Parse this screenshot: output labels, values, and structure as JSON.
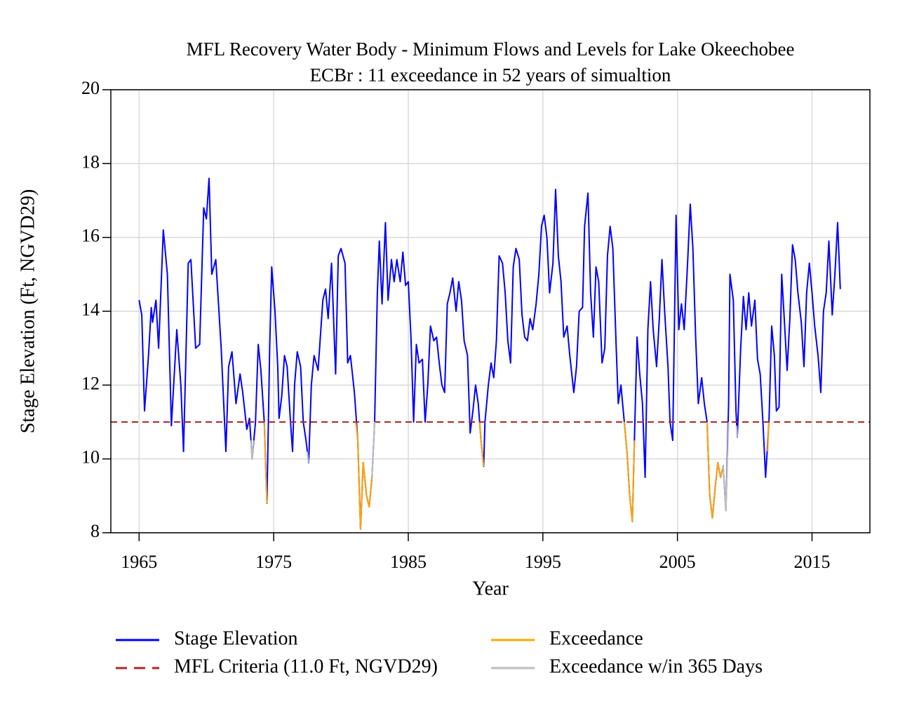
{
  "chart_data": {
    "type": "line",
    "title": "MFL Recovery Water Body - Minimum Flows and Levels for Lake Okeechobee",
    "subtitle": "ECBr : 11 exceedance in 52 years of simualtion",
    "x_label": "Year",
    "y_label": "Stage Elevation (Ft, NGVD29)",
    "xlim": [
      1962.9,
      2019.3
    ],
    "xticks": [
      1965,
      1975,
      1985,
      1995,
      2005,
      2015
    ],
    "ylim": [
      8,
      20
    ],
    "yticks": [
      8,
      10,
      12,
      14,
      16,
      18,
      20
    ],
    "grid": true,
    "legend": "bottom",
    "series": [
      {
        "name": "Stage Elevation",
        "color": "#0000ff",
        "x": [
          1965.0,
          1965.2,
          1965.4,
          1965.7,
          1965.9,
          1966.0,
          1966.25,
          1966.45,
          1966.8,
          1967.1,
          1967.4,
          1967.8,
          1968.1,
          1968.3,
          1968.65,
          1968.85,
          1969.2,
          1969.5,
          1969.8,
          1970.0,
          1970.2,
          1970.4,
          1970.7,
          1971.1,
          1971.45,
          1971.65,
          1971.9,
          1972.2,
          1972.5,
          1972.7,
          1973.0,
          1973.2,
          1973.4,
          1973.65,
          1973.85,
          1974.05,
          1974.3,
          1974.5,
          1974.7,
          1974.85,
          1975.1,
          1975.3,
          1975.4,
          1975.6,
          1975.8,
          1976.0,
          1976.25,
          1976.4,
          1976.55,
          1976.75,
          1977.0,
          1977.2,
          1977.4,
          1977.6,
          1977.8,
          1978.0,
          1978.3,
          1978.65,
          1978.85,
          1979.05,
          1979.3,
          1979.6,
          1979.8,
          1980.0,
          1980.3,
          1980.5,
          1980.7,
          1981.0,
          1981.25,
          1981.45,
          1981.65,
          1981.9,
          1982.1,
          1982.3,
          1982.5,
          1982.7,
          1982.85,
          1983.05,
          1983.3,
          1983.5,
          1983.75,
          1983.95,
          1984.15,
          1984.4,
          1984.6,
          1984.8,
          1985.0,
          1985.2,
          1985.4,
          1985.6,
          1985.8,
          1986.05,
          1986.25,
          1986.45,
          1986.65,
          1986.9,
          1987.1,
          1987.3,
          1987.5,
          1987.7,
          1987.9,
          1988.1,
          1988.3,
          1988.55,
          1988.75,
          1988.95,
          1989.15,
          1989.4,
          1989.6,
          1989.8,
          1990.0,
          1990.2,
          1990.4,
          1990.6,
          1990.7,
          1990.95,
          1991.15,
          1991.35,
          1991.55,
          1991.75,
          1992.0,
          1992.2,
          1992.4,
          1992.6,
          1992.8,
          1993.0,
          1993.25,
          1993.45,
          1993.65,
          1993.85,
          1994.05,
          1994.25,
          1994.5,
          1994.7,
          1994.9,
          1995.1,
          1995.3,
          1995.5,
          1995.75,
          1995.95,
          1996.15,
          1996.35,
          1996.55,
          1996.8,
          1997.0,
          1997.3,
          1997.5,
          1997.7,
          1997.95,
          1998.1,
          1998.35,
          1998.55,
          1998.75,
          1998.95,
          1999.15,
          1999.4,
          1999.6,
          1999.8,
          2000.0,
          2000.2,
          2000.45,
          2000.6,
          2000.8,
          2001.05,
          2001.25,
          2001.45,
          2001.65,
          2001.8,
          2002.0,
          2002.2,
          2002.4,
          2002.6,
          2002.8,
          2003.0,
          2003.2,
          2003.45,
          2003.65,
          2003.85,
          2004.05,
          2004.3,
          2004.45,
          2004.65,
          2004.9,
          2005.1,
          2005.3,
          2005.5,
          2005.75,
          2005.95,
          2006.15,
          2006.35,
          2006.55,
          2006.8,
          2007.0,
          2007.2,
          2007.4,
          2007.6,
          2007.8,
          2008.0,
          2008.2,
          2008.4,
          2008.6,
          2008.8,
          2008.9,
          2009.15,
          2009.35,
          2009.45,
          2009.7,
          2009.9,
          2010.1,
          2010.3,
          2010.5,
          2010.75,
          2010.95,
          2011.15,
          2011.35,
          2011.55,
          2011.8,
          2012.0,
          2012.2,
          2012.35,
          2012.55,
          2012.75,
          2012.95,
          2013.15,
          2013.35,
          2013.55,
          2013.75,
          2013.95,
          2014.2,
          2014.4,
          2014.6,
          2014.8,
          2015.0,
          2015.2,
          2015.45,
          2015.65,
          2015.85,
          2016.05,
          2016.25,
          2016.5,
          2016.7,
          2016.9,
          2017.1
        ],
        "values": [
          14.3,
          13.9,
          11.3,
          12.8,
          14.1,
          13.7,
          14.3,
          13.0,
          16.2,
          15.0,
          10.9,
          13.5,
          12.0,
          10.2,
          15.3,
          15.4,
          13.0,
          13.1,
          16.8,
          16.5,
          17.6,
          15.0,
          15.4,
          13.0,
          10.2,
          12.5,
          12.9,
          11.5,
          12.3,
          11.8,
          10.8,
          11.1,
          10.0,
          11.0,
          13.1,
          12.4,
          11.0,
          8.8,
          13.0,
          15.2,
          14.0,
          12.5,
          11.1,
          11.7,
          12.8,
          12.5,
          11.0,
          10.2,
          12.0,
          12.9,
          12.5,
          11.0,
          10.5,
          9.9,
          12.0,
          12.8,
          12.4,
          14.3,
          14.6,
          13.8,
          15.3,
          12.3,
          15.5,
          15.7,
          15.3,
          12.6,
          12.8,
          11.8,
          10.5,
          8.1,
          9.9,
          9.0,
          8.7,
          9.5,
          11.0,
          14.5,
          15.9,
          14.2,
          16.4,
          14.3,
          15.4,
          14.8,
          15.4,
          14.8,
          15.6,
          14.7,
          14.8,
          13.3,
          11.0,
          13.1,
          12.6,
          12.7,
          11.0,
          12.0,
          13.6,
          13.2,
          13.3,
          12.6,
          12.0,
          11.8,
          14.2,
          14.5,
          14.9,
          14.0,
          14.8,
          14.3,
          13.2,
          12.8,
          10.7,
          11.3,
          12.0,
          11.5,
          10.5,
          9.8,
          11.0,
          12.0,
          12.6,
          12.2,
          13.2,
          15.5,
          15.3,
          14.5,
          13.2,
          12.6,
          15.2,
          15.7,
          15.4,
          13.9,
          13.3,
          13.2,
          13.8,
          13.5,
          14.2,
          15.0,
          16.3,
          16.6,
          16.0,
          14.5,
          15.3,
          17.3,
          15.5,
          14.8,
          13.3,
          13.6,
          12.8,
          11.8,
          12.5,
          14.0,
          14.1,
          16.3,
          17.2,
          14.5,
          13.3,
          15.2,
          14.8,
          12.6,
          13.0,
          15.5,
          16.3,
          15.7,
          13.0,
          11.5,
          12.0,
          11.0,
          10.2,
          9.0,
          8.3,
          10.5,
          13.3,
          12.3,
          11.5,
          9.5,
          13.5,
          14.8,
          13.5,
          12.5,
          13.8,
          15.4,
          14.0,
          12.5,
          11.0,
          10.5,
          16.6,
          13.5,
          14.2,
          13.5,
          15.3,
          16.9,
          15.7,
          13.3,
          11.5,
          12.2,
          11.5,
          11.0,
          9.0,
          8.4,
          9.2,
          9.9,
          9.5,
          9.8,
          8.6,
          11.5,
          15.0,
          14.3,
          11.3,
          10.6,
          13.0,
          14.4,
          13.5,
          14.5,
          13.6,
          14.3,
          12.7,
          12.3,
          11.0,
          9.5,
          11.0,
          13.6,
          12.8,
          11.3,
          11.4,
          15.0,
          13.7,
          12.4,
          13.8,
          15.8,
          15.4,
          14.5,
          13.7,
          12.5,
          14.5,
          15.3,
          14.5,
          13.6,
          12.8,
          11.8,
          14.0,
          14.5,
          15.9,
          13.9,
          15.0,
          16.4,
          14.6
        ]
      },
      {
        "name": "Exceedance",
        "color": "#ffa500",
        "x": [
          1974.3,
          1974.5,
          null,
          1981.1,
          1981.25,
          1981.45,
          1981.65,
          1981.9,
          1982.1,
          1982.3,
          null,
          1990.3,
          1990.4,
          1990.6,
          null,
          2001.05,
          2001.25,
          2001.45,
          2001.65,
          2001.8,
          null,
          2007.2,
          2007.4,
          2007.6,
          2007.8,
          2008.0,
          2008.2,
          2008.4,
          null,
          2011.7,
          2011.8
        ],
        "values": [
          11.0,
          8.8,
          null,
          11.0,
          10.5,
          8.1,
          9.9,
          9.0,
          8.7,
          9.5,
          null,
          11.0,
          10.5,
          9.8,
          null,
          11.0,
          10.2,
          9.0,
          8.3,
          10.5,
          null,
          11.0,
          9.0,
          8.4,
          9.2,
          9.9,
          9.5,
          9.8,
          null,
          10.2,
          11.0
        ]
      },
      {
        "name": "MFL Criteria (11.0 Ft, NGVD29)",
        "color": "#a52a2a",
        "dashed": true,
        "value": 11.0
      },
      {
        "name": "Exceedance w/in 365 Days",
        "color": "#bebebe",
        "x": [
          1973.3,
          1973.4,
          1973.5,
          null,
          1977.5,
          1977.6,
          null,
          1982.3,
          1982.5,
          null,
          2008.4,
          2008.6,
          2008.8,
          null,
          2009.4,
          2009.45
        ],
        "values": [
          10.5,
          10.0,
          10.5,
          null,
          10.2,
          9.9,
          null,
          9.5,
          11.0,
          null,
          9.8,
          8.6,
          11.0,
          null,
          10.9,
          10.6
        ]
      }
    ]
  }
}
